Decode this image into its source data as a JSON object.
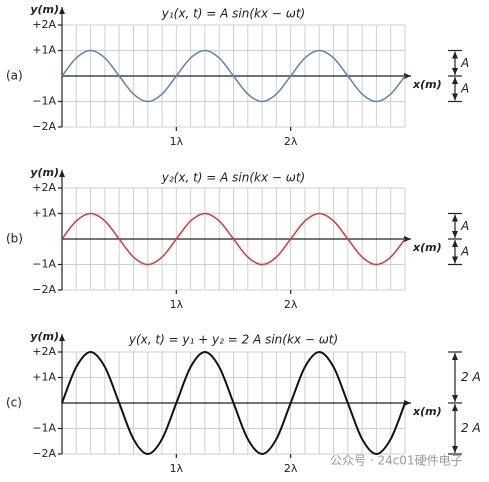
{
  "chart_data": [
    {
      "type": "line",
      "panel_label": "(a)",
      "title": "y₁(x, t) = A sin(kx − ωt)",
      "ylabel": "y(m)",
      "xlabel": "x(m)",
      "color": "#5b86b0",
      "x": [
        0,
        0.125,
        0.25,
        0.375,
        0.5,
        0.625,
        0.75,
        0.875,
        1,
        1.125,
        1.25,
        1.375,
        1.5,
        1.625,
        1.75,
        1.875,
        2,
        2.125,
        2.25,
        2.375,
        2.5,
        2.625,
        2.75,
        2.875,
        3
      ],
      "values": [
        0,
        0.7071,
        1,
        0.7071,
        0,
        -0.7071,
        -1,
        -0.7071,
        0,
        0.7071,
        1,
        0.7071,
        0,
        -0.7071,
        -1,
        -0.7071,
        0,
        0.7071,
        1,
        0.7071,
        0,
        -0.7071,
        -1,
        -0.7071,
        0
      ],
      "xlim": [
        0,
        3
      ],
      "xticks": [
        {
          "value": 1,
          "label": "1λ"
        },
        {
          "value": 2,
          "label": "2λ"
        }
      ],
      "xgrid": [
        0.125,
        0.25,
        0.375,
        0.5,
        0.625,
        0.75,
        0.875,
        1,
        1.125,
        1.25,
        1.375,
        1.5,
        1.625,
        1.75,
        1.875,
        2,
        2.125,
        2.25,
        2.375,
        2.5,
        2.625,
        2.75,
        2.875,
        3
      ],
      "ylim": [
        -2,
        2
      ],
      "yticks": [
        {
          "value": 2,
          "label": "+2A"
        },
        {
          "value": 1,
          "label": "+1A"
        },
        {
          "value": -1,
          "label": "−1A"
        },
        {
          "value": -2,
          "label": "−2A"
        }
      ],
      "annotations": [
        "A",
        "A"
      ]
    },
    {
      "type": "line",
      "panel_label": "(b)",
      "title": "y₂(x, t) = A sin(kx − ωt)",
      "ylabel": "y(m)",
      "xlabel": "x(m)",
      "color": "#d13b3b",
      "x": [
        0,
        0.125,
        0.25,
        0.375,
        0.5,
        0.625,
        0.75,
        0.875,
        1,
        1.125,
        1.25,
        1.375,
        1.5,
        1.625,
        1.75,
        1.875,
        2,
        2.125,
        2.25,
        2.375,
        2.5,
        2.625,
        2.75,
        2.875,
        3
      ],
      "values": [
        0,
        0.7071,
        1,
        0.7071,
        0,
        -0.7071,
        -1,
        -0.7071,
        0,
        0.7071,
        1,
        0.7071,
        0,
        -0.7071,
        -1,
        -0.7071,
        0,
        0.7071,
        1,
        0.7071,
        0,
        -0.7071,
        -1,
        -0.7071,
        0
      ],
      "xlim": [
        0,
        3
      ],
      "xticks": [
        {
          "value": 1,
          "label": "1λ"
        },
        {
          "value": 2,
          "label": "2λ"
        }
      ],
      "xgrid": [
        0.125,
        0.25,
        0.375,
        0.5,
        0.625,
        0.75,
        0.875,
        1,
        1.125,
        1.25,
        1.375,
        1.5,
        1.625,
        1.75,
        1.875,
        2,
        2.125,
        2.25,
        2.375,
        2.5,
        2.625,
        2.75,
        2.875,
        3
      ],
      "ylim": [
        -2,
        2
      ],
      "yticks": [
        {
          "value": 2,
          "label": "+2A"
        },
        {
          "value": 1,
          "label": "+1A"
        },
        {
          "value": -1,
          "label": "−1A"
        },
        {
          "value": -2,
          "label": "−2A"
        }
      ],
      "annotations": [
        "A",
        "A"
      ]
    },
    {
      "type": "line",
      "panel_label": "(c)",
      "title": "y(x, t) = y₁ + y₂ = 2 A sin(kx − ωt)",
      "ylabel": "y(m)",
      "xlabel": "x(m)",
      "color": "#111111",
      "x": [
        0,
        0.125,
        0.25,
        0.375,
        0.5,
        0.625,
        0.75,
        0.875,
        1,
        1.125,
        1.25,
        1.375,
        1.5,
        1.625,
        1.75,
        1.875,
        2,
        2.125,
        2.25,
        2.375,
        2.5,
        2.625,
        2.75,
        2.875,
        3
      ],
      "values": [
        0,
        1.4142,
        2,
        1.4142,
        0,
        -1.4142,
        -2,
        -1.4142,
        0,
        1.4142,
        2,
        1.4142,
        0,
        -1.4142,
        -2,
        -1.4142,
        0,
        1.4142,
        2,
        1.4142,
        0,
        -1.4142,
        -2,
        -1.4142,
        0
      ],
      "xlim": [
        0,
        3
      ],
      "xticks": [
        {
          "value": 1,
          "label": "1λ"
        },
        {
          "value": 2,
          "label": "2λ"
        }
      ],
      "xgrid": [
        0.125,
        0.25,
        0.375,
        0.5,
        0.625,
        0.75,
        0.875,
        1,
        1.125,
        1.25,
        1.375,
        1.5,
        1.625,
        1.75,
        1.875,
        2,
        2.125,
        2.25,
        2.375,
        2.5,
        2.625,
        2.75,
        2.875,
        3
      ],
      "ylim": [
        -2,
        2
      ],
      "yticks": [
        {
          "value": 2,
          "label": "+2A"
        },
        {
          "value": 1,
          "label": "+1A"
        },
        {
          "value": -1,
          "label": "−1A"
        },
        {
          "value": -2,
          "label": "−2A"
        }
      ],
      "annotations": [
        "2 A",
        "2 A"
      ]
    }
  ],
  "watermark": "公众号 · 24c01硬件电子"
}
